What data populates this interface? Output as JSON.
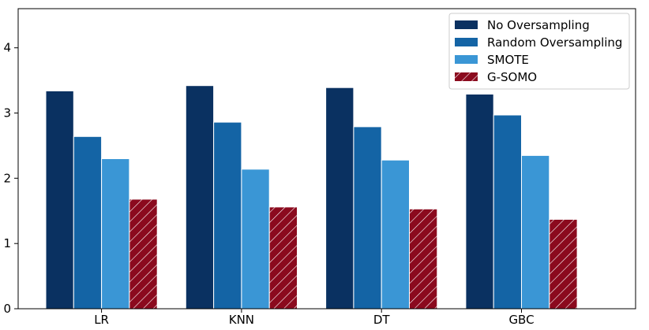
{
  "chart_data": {
    "type": "bar",
    "title": "",
    "xlabel": "",
    "ylabel": "",
    "categories": [
      "LR",
      "KNN",
      "DT",
      "GBC"
    ],
    "ylim": [
      0,
      4.6
    ],
    "yticks": [
      "0",
      "1",
      "2",
      "3",
      "4"
    ],
    "grid": false,
    "legend_position": "top-right",
    "series": [
      {
        "name": "No Oversampling",
        "values": [
          3.34,
          3.42,
          3.39,
          3.29
        ],
        "color": "#0a3161",
        "hatch": false
      },
      {
        "name": "Random Oversampling",
        "values": [
          2.64,
          2.86,
          2.79,
          2.97
        ],
        "color": "#1464a5",
        "hatch": false
      },
      {
        "name": "SMOTE",
        "values": [
          2.3,
          2.14,
          2.28,
          2.35
        ],
        "color": "#3a96d5",
        "hatch": false
      },
      {
        "name": "G-SOMO",
        "values": [
          1.68,
          1.56,
          1.53,
          1.37
        ],
        "color": "#8b0a1e",
        "hatch": true
      }
    ]
  }
}
